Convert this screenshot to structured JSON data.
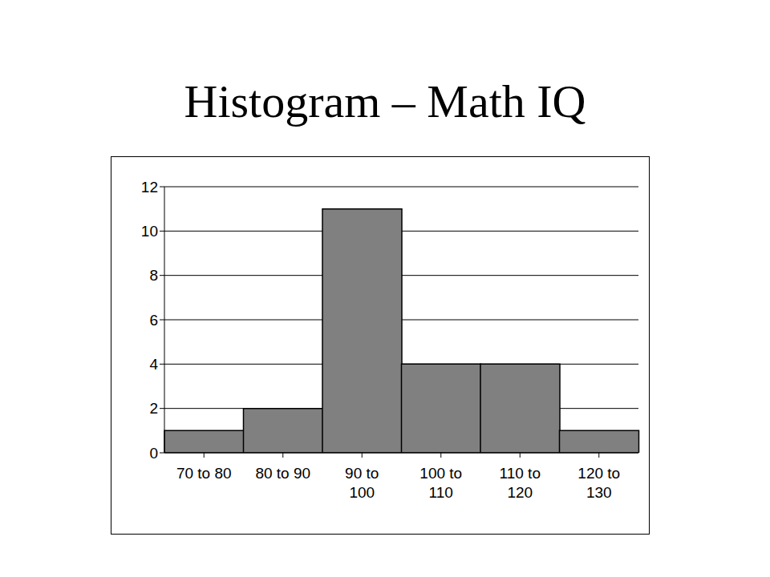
{
  "chart_data": {
    "type": "bar",
    "title": "Histogram – Math IQ",
    "categories": [
      "70 to 80",
      "80 to 90",
      "90 to 100",
      "100 to 110",
      "110 to 120",
      "120 to 130"
    ],
    "values": [
      1,
      2,
      11,
      4,
      4,
      1
    ],
    "color": "#808080",
    "ylim": [
      0,
      12
    ],
    "yticks": [
      0,
      2,
      4,
      6,
      8,
      10,
      12
    ],
    "grid": true
  }
}
